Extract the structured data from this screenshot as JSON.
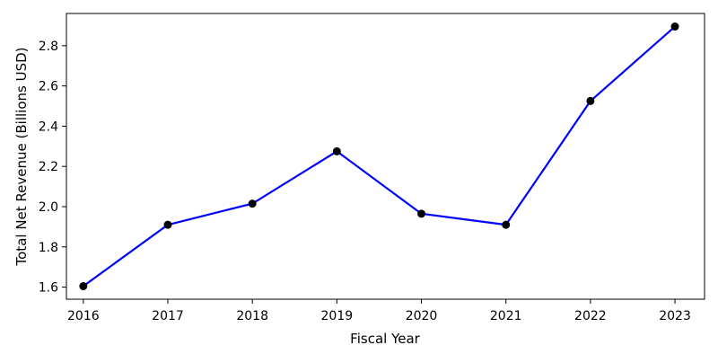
{
  "chart_data": {
    "type": "line",
    "title": "",
    "xlabel": "Fiscal Year",
    "ylabel": "Total Net Revenue (Billions USD)",
    "x": [
      2016,
      2017,
      2018,
      2019,
      2020,
      2021,
      2022,
      2023
    ],
    "x_tick_labels": [
      "2016",
      "2017",
      "2018",
      "2019",
      "2020",
      "2021",
      "2022",
      "2023"
    ],
    "series": [
      {
        "values": [
          1.605,
          1.91,
          2.015,
          2.275,
          1.965,
          1.91,
          2.525,
          2.895
        ],
        "line_color": "#0000ff",
        "marker_color": "#000000",
        "marker": "circle"
      }
    ],
    "xlim": [
      2015.8,
      2023.35
    ],
    "ylim": [
      1.54,
      2.96
    ],
    "y_ticks": [
      1.6,
      1.8,
      2.0,
      2.2,
      2.4,
      2.6,
      2.8
    ],
    "y_tick_labels": [
      "1.6",
      "1.8",
      "2.0",
      "2.2",
      "2.4",
      "2.6",
      "2.8"
    ],
    "grid": false,
    "legend": "none"
  }
}
